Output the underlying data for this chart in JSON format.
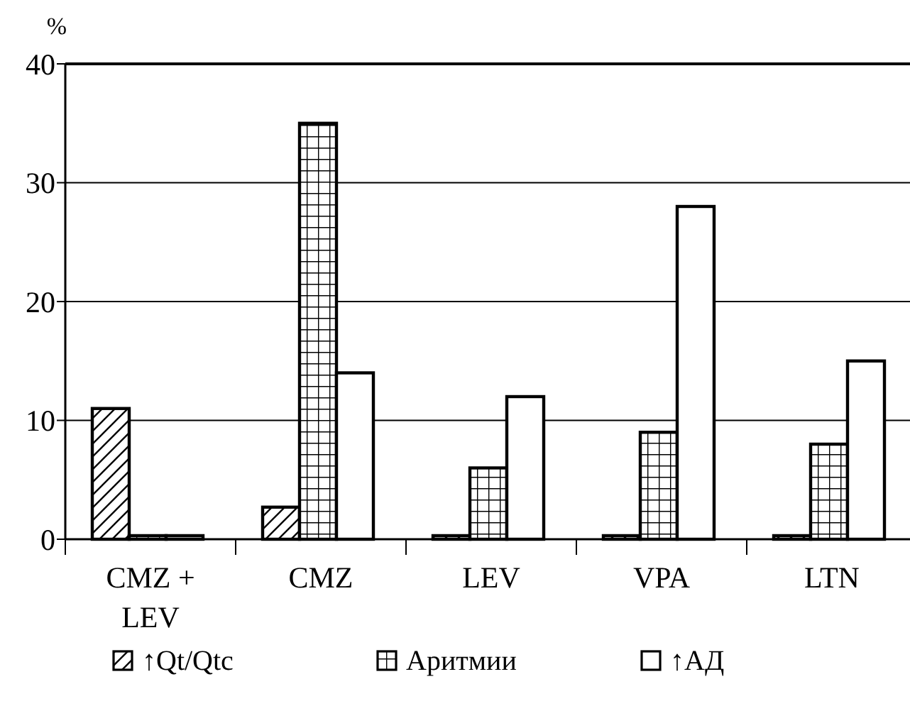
{
  "chart_data": {
    "type": "bar",
    "ylabel": "%",
    "categories": [
      "CMZ + LEV",
      "CMZ",
      "LEV",
      "VPA",
      "LTN"
    ],
    "series": [
      {
        "name": "↑Qt/Qtc",
        "color": "#000000",
        "values": [
          11,
          2.7,
          0.3,
          0.3,
          0.3
        ]
      },
      {
        "name": "Аритмии",
        "color": "#000000",
        "values": [
          0.3,
          35,
          6,
          9,
          8
        ]
      },
      {
        "name": "↑АД",
        "color": "#000000",
        "values": [
          0.3,
          14,
          12,
          28,
          15
        ]
      }
    ],
    "ylim": [
      0,
      40
    ],
    "yticks": [
      0,
      10,
      20,
      30,
      40
    ],
    "grid": "y",
    "legend": "bottom"
  }
}
